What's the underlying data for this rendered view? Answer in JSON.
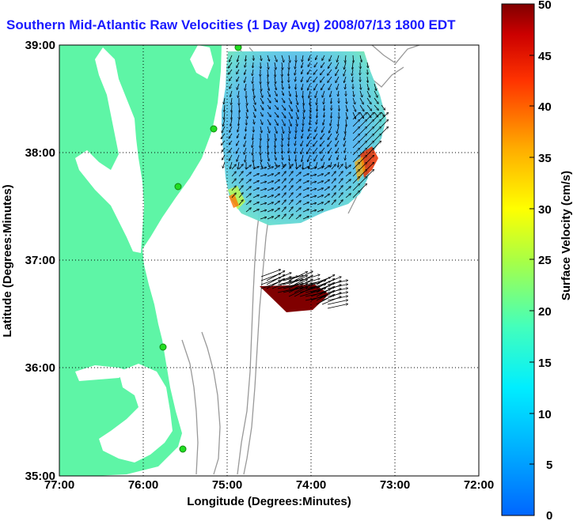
{
  "title": "Southern Mid-Atlantic Raw Velocities (1 Day Avg) 2008/07/13 1800 EDT",
  "map": {
    "x_axis": {
      "label": "Longitude (Degrees:Minutes)",
      "ticks": [
        "77:00",
        "76:00",
        "75:00",
        "74:00",
        "73:00",
        "72:00"
      ]
    },
    "y_axis": {
      "label": "Latitude (Degrees:Minutes)",
      "ticks": [
        "39:00",
        "38:00",
        "37:00",
        "36:00",
        "35:00"
      ]
    },
    "grid": "dotted",
    "land_color": "#5ef5a6",
    "water_color": "#ffffff"
  },
  "colorbar": {
    "label": "Surface Velocity (cm/s)",
    "ticks": [
      "50",
      "45",
      "40",
      "35",
      "30",
      "25",
      "20",
      "15",
      "10",
      "5",
      "0"
    ],
    "range": [
      0,
      50
    ],
    "colormap": "jet"
  }
}
